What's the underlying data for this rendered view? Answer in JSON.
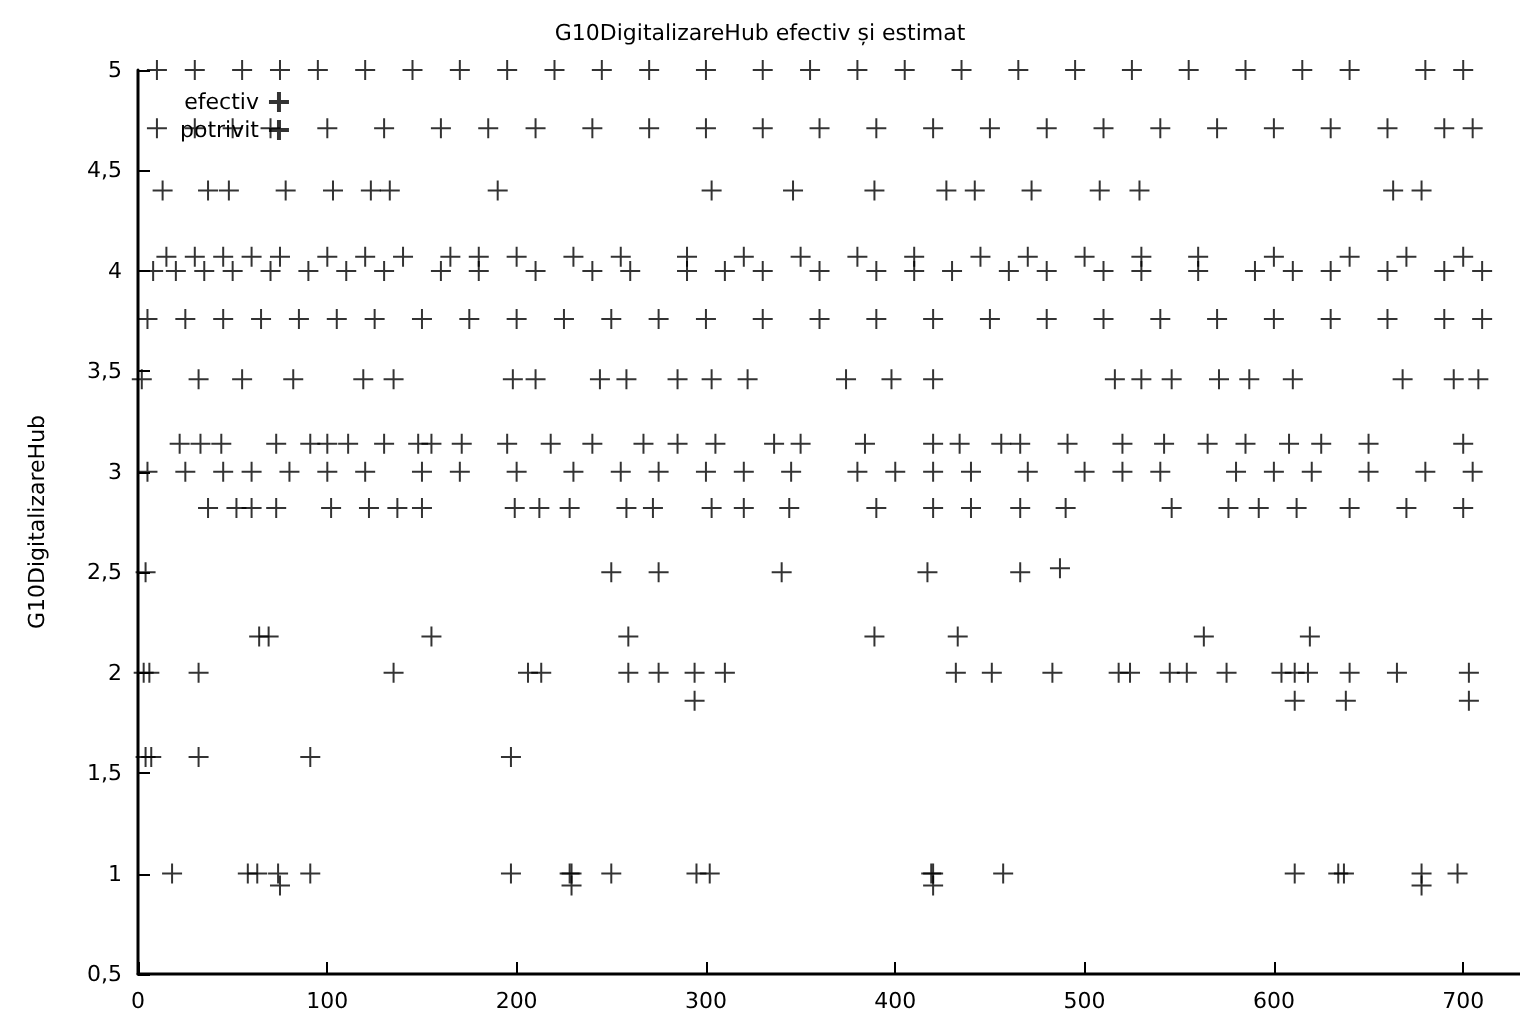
{
  "chart_data": {
    "type": "scatter",
    "title": "G10DigitalizareHub efectiv și estimat",
    "ylabel": "G10DigitalizareHub",
    "xlim": [
      0,
      730
    ],
    "xticks": [
      0,
      100,
      200,
      300,
      400,
      500,
      600,
      700
    ],
    "ylim": [
      0.5,
      5
    ],
    "yticks": [
      {
        "value": 0.5,
        "label": "0,5"
      },
      1,
      {
        "value": 1.5,
        "label": "1,5"
      },
      2,
      {
        "value": 2.5,
        "label": "2,5"
      },
      3,
      {
        "value": 3.5,
        "label": "3,5"
      },
      4,
      {
        "value": 4.5,
        "label": "4,5"
      },
      5
    ],
    "grid": false,
    "legend": "top left",
    "marker": "cross",
    "series": [
      {
        "name": "efectiv",
        "color": "#000000",
        "x": [
          18,
          58,
          63,
          74,
          91,
          197,
          228,
          229,
          250,
          295,
          302,
          419,
          420,
          457,
          611,
          634,
          637,
          678,
          697,
          3,
          6,
          32,
          135,
          206,
          213,
          259,
          275,
          294,
          310,
          432,
          451,
          483,
          518,
          524,
          545,
          554,
          575,
          604,
          611,
          618,
          640,
          665,
          703,
          5,
          25,
          45,
          60,
          80,
          100,
          120,
          150,
          170,
          200,
          230,
          255,
          275,
          300,
          320,
          345,
          380,
          400,
          420,
          440,
          470,
          500,
          520,
          540,
          580,
          600,
          620,
          650,
          680,
          705,
          8,
          20,
          35,
          50,
          70,
          90,
          110,
          130,
          160,
          180,
          210,
          240,
          260,
          290,
          310,
          330,
          360,
          390,
          410,
          430,
          460,
          480,
          510,
          530,
          560,
          590,
          610,
          630,
          660,
          690,
          710,
          10,
          30,
          55,
          75,
          95,
          120,
          145,
          170,
          195,
          220,
          245,
          270,
          300,
          330,
          355,
          380,
          405,
          435,
          465,
          495,
          525,
          555,
          585,
          615,
          640,
          680,
          700
        ],
        "values": [
          1,
          1,
          1,
          1,
          1,
          1,
          1,
          1,
          1,
          1,
          1,
          1,
          1,
          1,
          1,
          1,
          1,
          1,
          1,
          2,
          2,
          2,
          2,
          2,
          2,
          2,
          2,
          2,
          2,
          2,
          2,
          2,
          2,
          2,
          2,
          2,
          2,
          2,
          2,
          2,
          2,
          2,
          2,
          3,
          3,
          3,
          3,
          3,
          3,
          3,
          3,
          3,
          3,
          3,
          3,
          3,
          3,
          3,
          3,
          3,
          3,
          3,
          3,
          3,
          3,
          3,
          3,
          3,
          3,
          3,
          3,
          3,
          3,
          4,
          4,
          4,
          4,
          4,
          4,
          4,
          4,
          4,
          4,
          4,
          4,
          4,
          4,
          4,
          4,
          4,
          4,
          4,
          4,
          4,
          4,
          4,
          4,
          4,
          4,
          4,
          4,
          4,
          4,
          4,
          5,
          5,
          5,
          5,
          5,
          5,
          5,
          5,
          5,
          5,
          5,
          5,
          5,
          5,
          5,
          5,
          5,
          5,
          5,
          5,
          5,
          5,
          5,
          5,
          5,
          5,
          5
        ]
      },
      {
        "name": "potrivit",
        "color": "#000000",
        "x": [
          10,
          30,
          50,
          70,
          100,
          130,
          160,
          185,
          210,
          240,
          270,
          300,
          330,
          360,
          390,
          420,
          450,
          480,
          510,
          540,
          570,
          600,
          630,
          660,
          690,
          705,
          13,
          37,
          48,
          78,
          103,
          123,
          133,
          190,
          303,
          346,
          389,
          427,
          442,
          472,
          508,
          529,
          663,
          678,
          15,
          30,
          45,
          60,
          75,
          100,
          120,
          140,
          165,
          180,
          200,
          230,
          255,
          290,
          320,
          350,
          380,
          410,
          445,
          470,
          500,
          530,
          560,
          600,
          640,
          670,
          700,
          5,
          25,
          45,
          65,
          85,
          105,
          125,
          150,
          175,
          200,
          225,
          250,
          275,
          300,
          330,
          360,
          390,
          420,
          450,
          480,
          510,
          540,
          570,
          600,
          630,
          660,
          690,
          710,
          2,
          32,
          55,
          82,
          119,
          135,
          198,
          210,
          244,
          258,
          285,
          303,
          322,
          374,
          398,
          420,
          516,
          530,
          546,
          571,
          587,
          610,
          668,
          695,
          708,
          22,
          33,
          44,
          73,
          91,
          100,
          111,
          130,
          148,
          155,
          171,
          195,
          218,
          240,
          267,
          285,
          305,
          336,
          350,
          384,
          420,
          434,
          456,
          466,
          491,
          520,
          542,
          565,
          585,
          608,
          625,
          650,
          700,
          37,
          52,
          60,
          73,
          102,
          122,
          137,
          150,
          199,
          212,
          228,
          258,
          272,
          303,
          320,
          344,
          390,
          420,
          440,
          466,
          490,
          546,
          576,
          592,
          612,
          640,
          670,
          700,
          4,
          250,
          275,
          340,
          417,
          466,
          487,
          64,
          69,
          155,
          259,
          389,
          433,
          563,
          619,
          294,
          611,
          638,
          703,
          4,
          7,
          32,
          91,
          197,
          75,
          229,
          420,
          678
        ],
        "values": [
          4.71,
          4.71,
          4.71,
          4.71,
          4.71,
          4.71,
          4.71,
          4.71,
          4.71,
          4.71,
          4.71,
          4.71,
          4.71,
          4.71,
          4.71,
          4.71,
          4.71,
          4.71,
          4.71,
          4.71,
          4.71,
          4.71,
          4.71,
          4.71,
          4.71,
          4.71,
          4.4,
          4.4,
          4.4,
          4.4,
          4.4,
          4.4,
          4.4,
          4.4,
          4.4,
          4.4,
          4.4,
          4.4,
          4.4,
          4.4,
          4.4,
          4.4,
          4.4,
          4.4,
          4.07,
          4.07,
          4.07,
          4.07,
          4.07,
          4.07,
          4.07,
          4.07,
          4.07,
          4.07,
          4.07,
          4.07,
          4.07,
          4.07,
          4.07,
          4.07,
          4.07,
          4.07,
          4.07,
          4.07,
          4.07,
          4.07,
          4.07,
          4.07,
          4.07,
          4.07,
          4.07,
          3.76,
          3.76,
          3.76,
          3.76,
          3.76,
          3.76,
          3.76,
          3.76,
          3.76,
          3.76,
          3.76,
          3.76,
          3.76,
          3.76,
          3.76,
          3.76,
          3.76,
          3.76,
          3.76,
          3.76,
          3.76,
          3.76,
          3.76,
          3.76,
          3.76,
          3.76,
          3.76,
          3.76,
          3.46,
          3.46,
          3.46,
          3.46,
          3.46,
          3.46,
          3.46,
          3.46,
          3.46,
          3.46,
          3.46,
          3.46,
          3.46,
          3.46,
          3.46,
          3.46,
          3.46,
          3.46,
          3.46,
          3.46,
          3.46,
          3.46,
          3.46,
          3.46,
          3.46,
          3.14,
          3.14,
          3.14,
          3.14,
          3.14,
          3.14,
          3.14,
          3.14,
          3.14,
          3.14,
          3.14,
          3.14,
          3.14,
          3.14,
          3.14,
          3.14,
          3.14,
          3.14,
          3.14,
          3.14,
          3.14,
          3.14,
          3.14,
          3.14,
          3.14,
          3.14,
          3.14,
          3.14,
          3.14,
          3.14,
          3.14,
          3.14,
          3.14,
          2.82,
          2.82,
          2.82,
          2.82,
          2.82,
          2.82,
          2.82,
          2.82,
          2.82,
          2.82,
          2.82,
          2.82,
          2.82,
          2.82,
          2.82,
          2.82,
          2.82,
          2.82,
          2.82,
          2.82,
          2.82,
          2.82,
          2.82,
          2.82,
          2.82,
          2.82,
          2.82,
          2.82,
          2.5,
          2.5,
          2.5,
          2.5,
          2.5,
          2.5,
          2.52,
          2.18,
          2.18,
          2.18,
          2.18,
          2.18,
          2.18,
          2.18,
          2.18,
          1.86,
          1.86,
          1.86,
          1.86,
          1.58,
          1.58,
          1.58,
          1.58,
          1.58,
          0.94,
          0.94,
          0.94,
          0.94
        ]
      }
    ]
  }
}
